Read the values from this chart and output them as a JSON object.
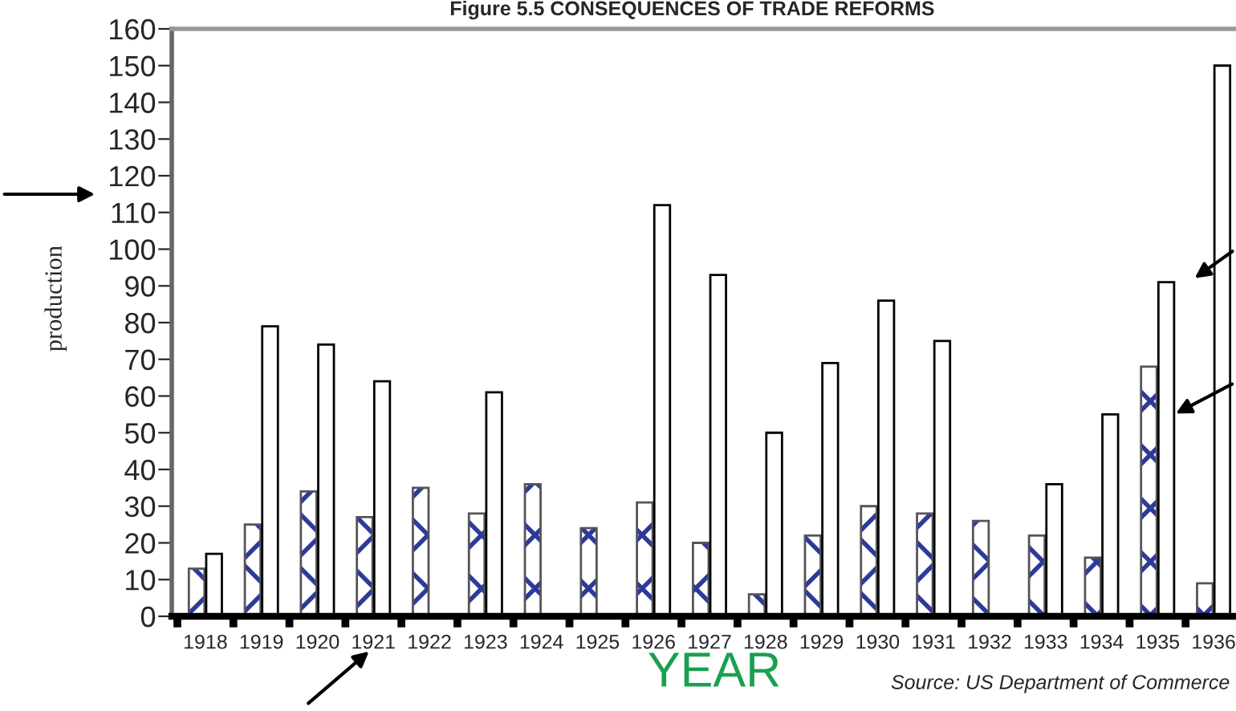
{
  "chart_data": {
    "type": "bar",
    "title": "Figure 5.5 CONSEQUENCES OF TRADE REFORMS",
    "xlabel": "YEAR",
    "ylabel": "production",
    "categories": [
      "1918",
      "1919",
      "1920",
      "1921",
      "1922",
      "1923",
      "1924",
      "1925",
      "1926",
      "1927",
      "1928",
      "1929",
      "1930",
      "1931",
      "1932",
      "1933",
      "1934",
      "1935",
      "1936"
    ],
    "series": [
      {
        "color": "#2e3a9a",
        "values": [
          13,
          25,
          34,
          27,
          35,
          28,
          36,
          24,
          31,
          20,
          6,
          22,
          30,
          28,
          26,
          22,
          16,
          68,
          9
        ]
      },
      {
        "color": "#ffffff",
        "values": [
          17,
          79,
          74,
          64,
          null,
          61,
          null,
          null,
          112,
          93,
          50,
          69,
          86,
          75,
          null,
          36,
          55,
          91,
          150
        ]
      }
    ],
    "ylim": [
      0,
      160
    ],
    "yticks": [
      0,
      10,
      20,
      30,
      40,
      50,
      60,
      70,
      80,
      90,
      100,
      110,
      120,
      130,
      140,
      150,
      160
    ],
    "annotations": [
      "Source: US Department of Commerce"
    ],
    "grid": false,
    "legend": false
  }
}
